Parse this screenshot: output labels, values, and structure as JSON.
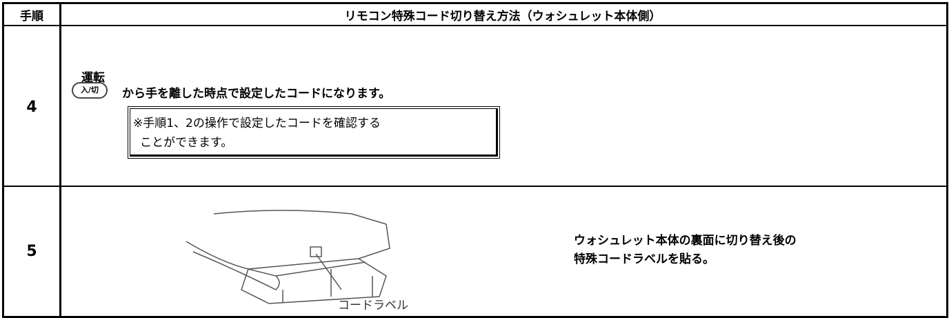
{
  "table": {
    "header": {
      "step": "手順",
      "title": "リモコン特殊コード切り替え方法（ウォシュレット本体側）"
    },
    "rows": [
      {
        "step": "4",
        "button_caption": "運転",
        "button_label": "入/切",
        "text": "から手を離した時点で設定したコードになります。",
        "note": [
          "※手順1、2の操作で設定したコードを確認する",
          "ことができます。"
        ]
      },
      {
        "step": "5",
        "illustration_label": "コードラベル",
        "text": [
          "ウォシュレット本体の裏面に切り替え後の",
          "特殊コードラベルを貼る。"
        ]
      }
    ]
  }
}
